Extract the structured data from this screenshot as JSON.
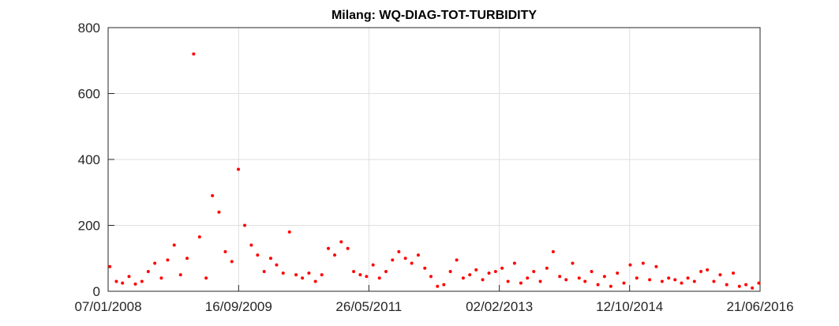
{
  "chart_data": {
    "type": "scatter",
    "title": "Milang: WQ-DIAG-TOT-TURBIDITY",
    "xlim": [
      "07/01/2008",
      "21/06/2016"
    ],
    "xticks": [
      "07/01/2008",
      "16/09/2009",
      "26/05/2011",
      "02/02/2013",
      "12/10/2014",
      "21/06/2016"
    ],
    "ylim": [
      0,
      800
    ],
    "yticks": [
      0,
      200,
      400,
      600,
      800
    ],
    "grid": true,
    "series": [
      {
        "color": "#ff0000",
        "x": [
          "15/01/2008",
          "15/02/2008",
          "15/03/2008",
          "15/04/2008",
          "15/05/2008",
          "15/06/2008",
          "15/07/2008",
          "15/08/2008",
          "15/09/2008",
          "15/10/2008",
          "15/11/2008",
          "15/12/2008",
          "15/01/2009",
          "15/02/2009",
          "15/03/2009",
          "15/04/2009",
          "15/05/2009",
          "15/06/2009",
          "15/07/2009",
          "15/08/2009",
          "15/09/2009",
          "15/10/2009",
          "15/11/2009",
          "15/12/2009",
          "15/01/2010",
          "15/02/2010",
          "15/03/2010",
          "15/04/2010",
          "15/05/2010",
          "15/06/2010",
          "15/07/2010",
          "15/08/2010",
          "15/09/2010",
          "15/10/2010",
          "15/11/2010",
          "15/12/2010",
          "15/01/2011",
          "15/02/2011",
          "15/03/2011",
          "15/04/2011",
          "15/05/2011",
          "15/06/2011",
          "15/07/2011",
          "15/08/2011",
          "15/09/2011",
          "15/10/2011",
          "15/11/2011",
          "15/12/2011",
          "15/01/2012",
          "15/02/2012",
          "15/03/2012",
          "15/04/2012",
          "15/05/2012",
          "15/06/2012",
          "15/07/2012",
          "15/08/2012",
          "15/09/2012",
          "15/10/2012",
          "15/11/2012",
          "15/12/2012",
          "15/01/2013",
          "15/02/2013",
          "15/03/2013",
          "15/04/2013",
          "15/05/2013",
          "15/06/2013",
          "15/07/2013",
          "15/08/2013",
          "15/09/2013",
          "15/10/2013",
          "15/11/2013",
          "15/12/2013",
          "15/01/2014",
          "15/02/2014",
          "15/03/2014",
          "15/04/2014",
          "15/05/2014",
          "15/06/2014",
          "15/07/2014",
          "15/08/2014",
          "15/09/2014",
          "15/10/2014",
          "15/11/2014",
          "15/12/2014",
          "15/01/2015",
          "15/02/2015",
          "15/03/2015",
          "15/04/2015",
          "15/05/2015",
          "15/06/2015",
          "15/07/2015",
          "15/08/2015",
          "15/09/2015",
          "15/10/2015",
          "15/11/2015",
          "15/12/2015",
          "15/01/2016",
          "15/02/2016",
          "15/03/2016",
          "15/04/2016",
          "15/05/2016",
          "15/06/2016"
        ],
        "values": [
          75,
          30,
          25,
          45,
          22,
          30,
          60,
          85,
          40,
          95,
          140,
          50,
          100,
          720,
          165,
          40,
          290,
          240,
          120,
          90,
          370,
          200,
          140,
          110,
          60,
          100,
          80,
          55,
          180,
          50,
          40,
          55,
          30,
          50,
          130,
          110,
          150,
          130,
          60,
          50,
          45,
          80,
          40,
          60,
          95,
          120,
          100,
          85,
          110,
          70,
          45,
          15,
          20,
          60,
          95,
          40,
          50,
          65,
          35,
          55,
          60,
          70,
          30,
          85,
          25,
          40,
          60,
          30,
          70,
          120,
          45,
          35,
          85,
          40,
          30,
          60,
          20,
          45,
          15,
          55,
          25,
          80,
          40,
          85,
          35,
          75,
          30,
          40,
          35,
          25,
          40,
          30,
          60,
          65,
          30,
          50,
          20,
          55,
          15,
          20,
          10,
          25
        ]
      }
    ]
  }
}
